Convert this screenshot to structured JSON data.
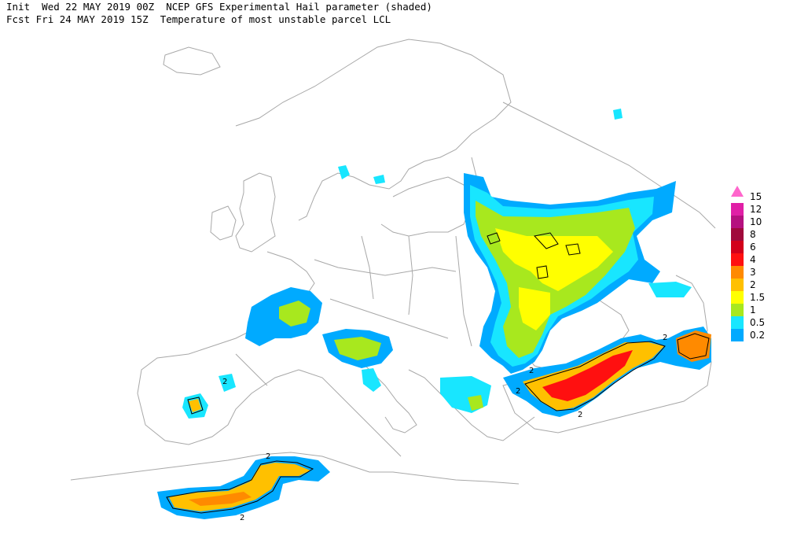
{
  "header": {
    "init_label": "Init",
    "init_time": "Wed 22 MAY 2019 00Z",
    "product_title": "NCEP GFS Experimental Hail parameter (shaded)",
    "fcst_label": "Fcst",
    "fcst_time": "Fri 24 MAY 2019 15Z",
    "product_subtitle": "Temperature of most unstable parcel LCL"
  },
  "legend": {
    "levels": [
      {
        "label": "15",
        "color": "#ff66cc"
      },
      {
        "label": "12",
        "color": "#e01fa6"
      },
      {
        "label": "10",
        "color": "#b5117f"
      },
      {
        "label": "8",
        "color": "#a00a3c"
      },
      {
        "label": "6",
        "color": "#d2001a"
      },
      {
        "label": "4",
        "color": "#ff1010"
      },
      {
        "label": "3",
        "color": "#ff8a00"
      },
      {
        "label": "2",
        "color": "#ffc000"
      },
      {
        "label": "1.5",
        "color": "#ffff00"
      },
      {
        "label": "1",
        "color": "#a8e81e"
      },
      {
        "label": "0.5",
        "color": "#18e6ff"
      },
      {
        "label": "0.2",
        "color": "#00aaff"
      }
    ]
  },
  "contour_labels": [
    "2",
    "2",
    "2",
    "2",
    "2",
    "2",
    "2"
  ],
  "colors": {
    "coastline": "#a8a8a8",
    "contour": "#000000"
  }
}
